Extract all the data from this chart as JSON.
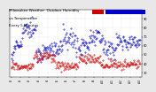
{
  "title_line1": "Milwaukee Weather  Outdoor Humidity",
  "title_line2": "vs Temperature",
  "title_line3": "Every 5 Minutes",
  "bg_color": "#e8e8e8",
  "plot_bg": "#ffffff",
  "humidity_color": "#0000cc",
  "temp_color": "#cc0000",
  "legend_red_color": "#cc0000",
  "legend_blue_color": "#0000cc",
  "ylim": [
    25,
    100
  ],
  "y_ticks": [
    30,
    40,
    50,
    60,
    70,
    80,
    90
  ],
  "title_fontsize": 3.0,
  "tick_fontsize": 2.5,
  "grid_color": "#cccccc",
  "grid_style": ":",
  "num_points": 288,
  "humidity_mean": 62,
  "temp_mean": 40
}
